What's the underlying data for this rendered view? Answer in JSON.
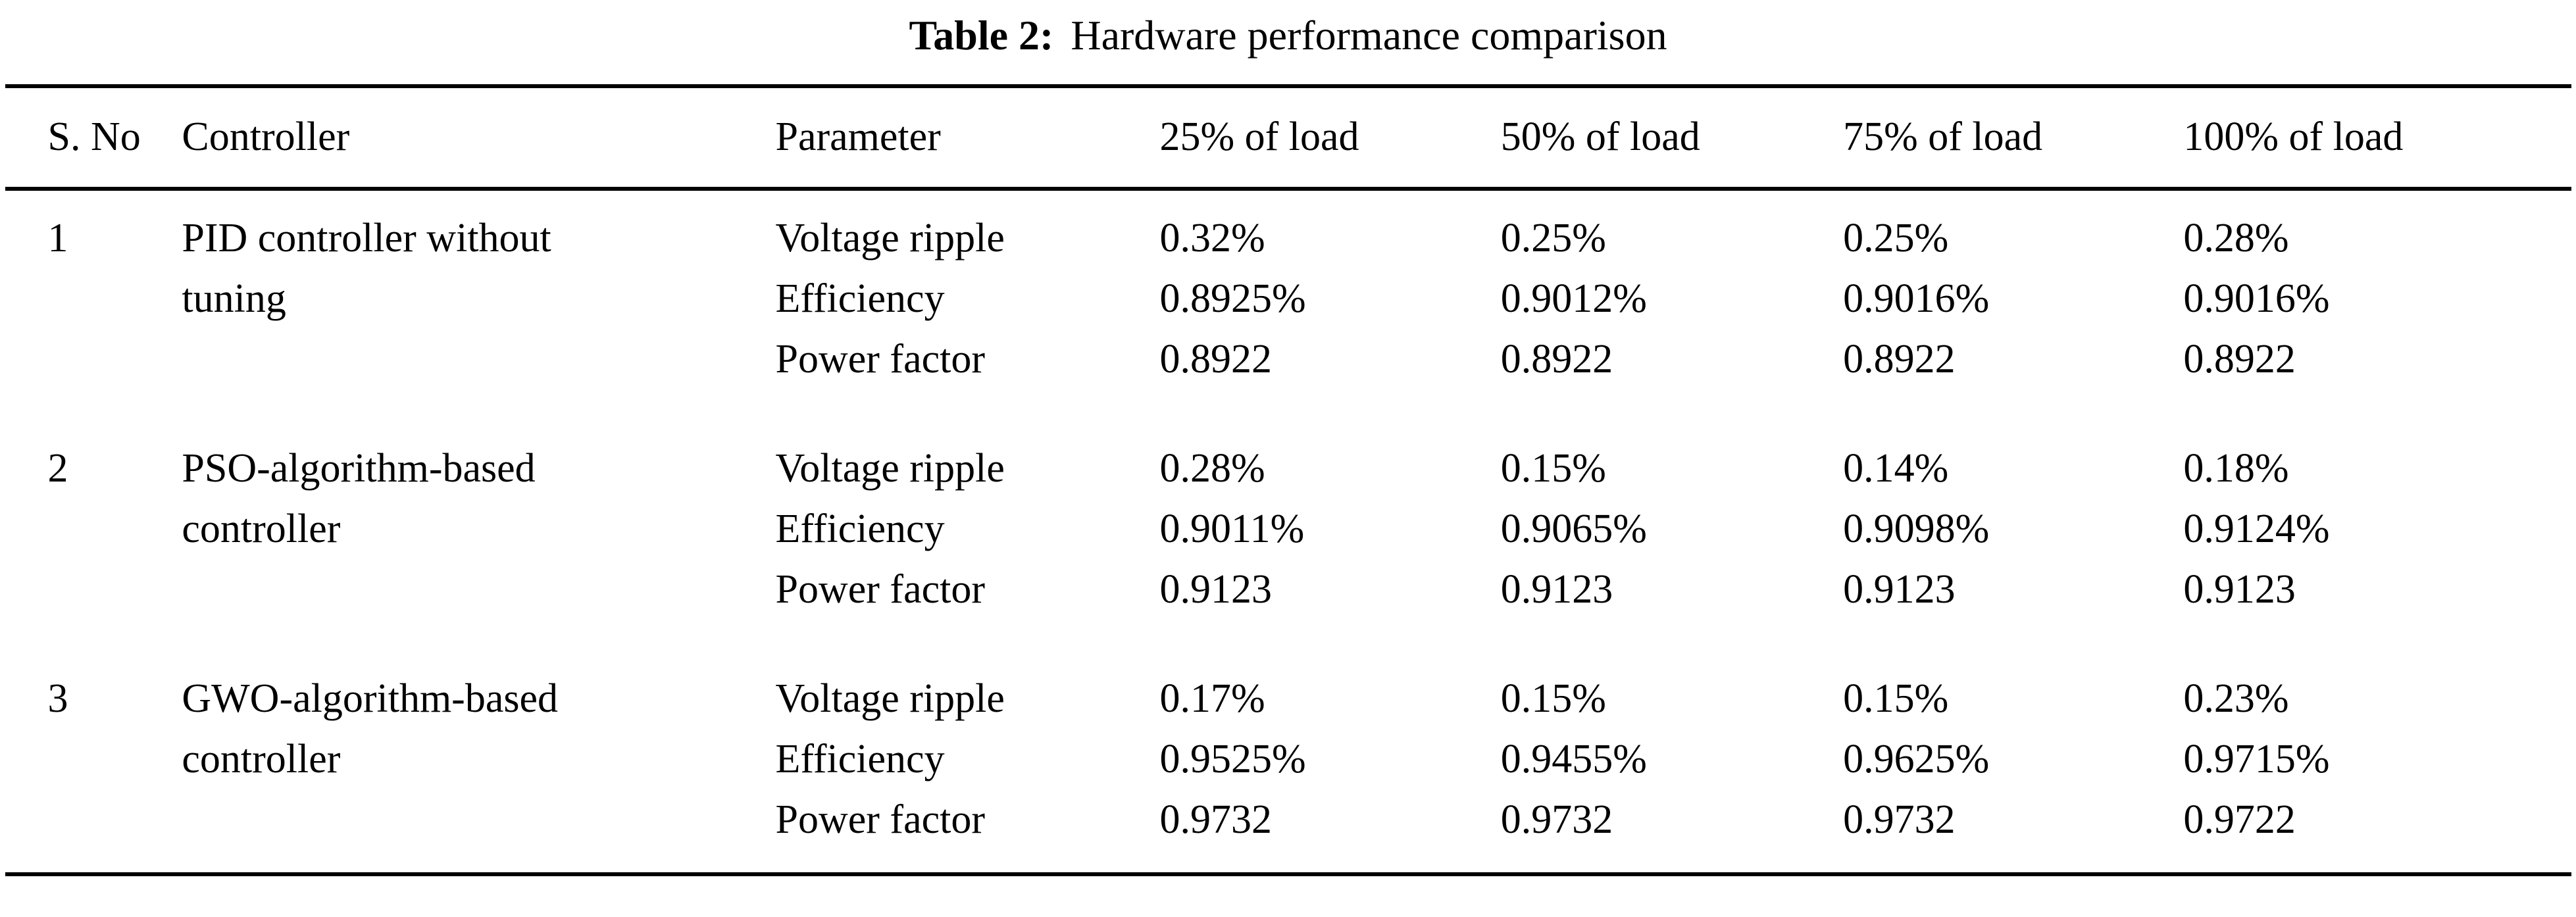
{
  "caption": {
    "label": "Table 2:",
    "text": "Hardware performance comparison"
  },
  "table": {
    "headers": [
      "S. No",
      "Controller",
      "Parameter",
      "25% of load",
      "50% of load",
      "75% of load",
      "100% of load"
    ],
    "groups": [
      {
        "sno": "1",
        "controller": "PID controller without tuning",
        "rows": [
          {
            "parameter": "Voltage ripple",
            "values": [
              "0.32%",
              "0.25%",
              "0.25%",
              "0.28%"
            ]
          },
          {
            "parameter": "Efficiency",
            "values": [
              "0.8925%",
              "0.9012%",
              "0.9016%",
              "0.9016%"
            ]
          },
          {
            "parameter": "Power factor",
            "values": [
              "0.8922",
              "0.8922",
              "0.8922",
              "0.8922"
            ]
          }
        ]
      },
      {
        "sno": "2",
        "controller": "PSO-algorithm-based controller",
        "rows": [
          {
            "parameter": "Voltage ripple",
            "values": [
              "0.28%",
              "0.15%",
              "0.14%",
              "0.18%"
            ]
          },
          {
            "parameter": "Efficiency",
            "values": [
              "0.9011%",
              "0.9065%",
              "0.9098%",
              "0.9124%"
            ]
          },
          {
            "parameter": "Power factor",
            "values": [
              "0.9123",
              "0.9123",
              "0.9123",
              "0.9123"
            ]
          }
        ]
      },
      {
        "sno": "3",
        "controller": "GWO-algorithm-based controller",
        "rows": [
          {
            "parameter": "Voltage ripple",
            "values": [
              "0.17%",
              "0.15%",
              "0.15%",
              "0.23%"
            ]
          },
          {
            "parameter": "Efficiency",
            "values": [
              "0.9525%",
              "0.9455%",
              "0.9625%",
              "0.9715%"
            ]
          },
          {
            "parameter": "Power factor",
            "values": [
              "0.9732",
              "0.9732",
              "0.9732",
              "0.9722"
            ]
          }
        ]
      }
    ]
  }
}
